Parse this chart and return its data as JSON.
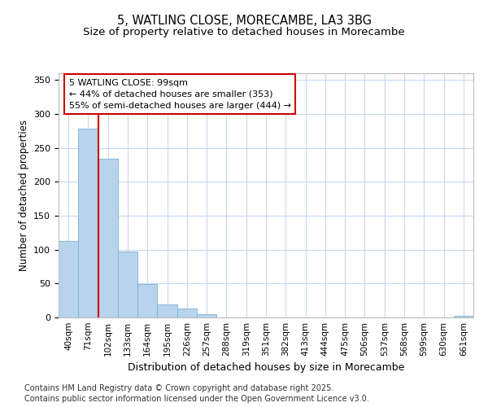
{
  "title1": "5, WATLING CLOSE, MORECAMBE, LA3 3BG",
  "title2": "Size of property relative to detached houses in Morecambe",
  "xlabel": "Distribution of detached houses by size in Morecambe",
  "ylabel": "Number of detached properties",
  "categories": [
    "40sqm",
    "71sqm",
    "102sqm",
    "133sqm",
    "164sqm",
    "195sqm",
    "226sqm",
    "257sqm",
    "288sqm",
    "319sqm",
    "351sqm",
    "382sqm",
    "413sqm",
    "444sqm",
    "475sqm",
    "506sqm",
    "537sqm",
    "568sqm",
    "599sqm",
    "630sqm",
    "661sqm"
  ],
  "values": [
    113,
    278,
    234,
    97,
    49,
    19,
    13,
    5,
    0,
    0,
    0,
    0,
    0,
    0,
    0,
    0,
    0,
    0,
    0,
    0,
    2
  ],
  "bar_color": "#b8d4ec",
  "bar_edge_color": "#7ab0d8",
  "vline_color": "#cc0000",
  "vline_pos": 1.5,
  "annotation_text": "5 WATLING CLOSE: 99sqm\n← 44% of detached houses are smaller (353)\n55% of semi-detached houses are larger (444) →",
  "annotation_box_color": "white",
  "annotation_box_edge": "#cc0000",
  "ylim": [
    0,
    360
  ],
  "yticks": [
    0,
    50,
    100,
    150,
    200,
    250,
    300,
    350
  ],
  "footer1": "Contains HM Land Registry data © Crown copyright and database right 2025.",
  "footer2": "Contains public sector information licensed under the Open Government Licence v3.0.",
  "bg_color": "#ffffff",
  "grid_color": "#c8d8f0"
}
